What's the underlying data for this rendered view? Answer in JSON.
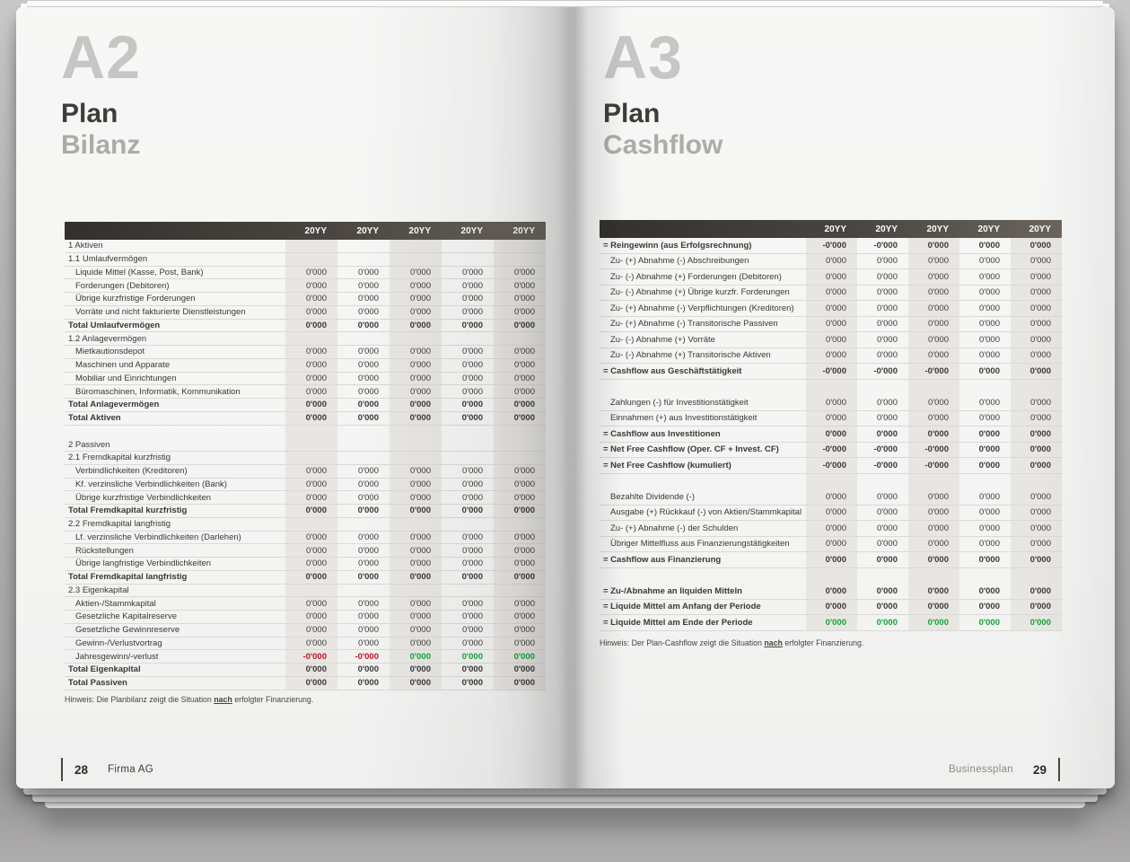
{
  "colors": {
    "negative": "#c40e22",
    "positive": "#15a338",
    "column_band": "#e8e6e3",
    "header_bar_dark": "#33302d",
    "header_bar_light": "#6b655e"
  },
  "left_page": {
    "chapter": "A2",
    "title": "Plan",
    "subtitle": "Bilanz",
    "table": {
      "year_headers": [
        "20YY",
        "20YY",
        "20YY",
        "20YY",
        "20YY"
      ],
      "rows": [
        {
          "label": "1 Aktiven",
          "type": "section"
        },
        {
          "label": "1.1 Umlaufvermögen",
          "type": "section"
        },
        {
          "label": "Liquide Mittel (Kasse, Post, Bank)",
          "type": "item",
          "values": [
            "0'000",
            "0'000",
            "0'000",
            "0'000",
            "0'000"
          ]
        },
        {
          "label": "Forderungen (Debitoren)",
          "type": "item",
          "values": [
            "0'000",
            "0'000",
            "0'000",
            "0'000",
            "0'000"
          ]
        },
        {
          "label": "Übrige kurzfristige Forderungen",
          "type": "item",
          "values": [
            "0'000",
            "0'000",
            "0'000",
            "0'000",
            "0'000"
          ]
        },
        {
          "label": "Vorräte und nicht fakturierte Dienstleistungen",
          "type": "item",
          "values": [
            "0'000",
            "0'000",
            "0'000",
            "0'000",
            "0'000"
          ]
        },
        {
          "label": "Total Umlaufvermögen",
          "type": "total",
          "values": [
            "0'000",
            "0'000",
            "0'000",
            "0'000",
            "0'000"
          ]
        },
        {
          "label": "1.2 Anlagevermögen",
          "type": "section"
        },
        {
          "label": "Mietkautionsdepot",
          "type": "item",
          "values": [
            "0'000",
            "0'000",
            "0'000",
            "0'000",
            "0'000"
          ]
        },
        {
          "label": "Maschinen und Apparate",
          "type": "item",
          "values": [
            "0'000",
            "0'000",
            "0'000",
            "0'000",
            "0'000"
          ]
        },
        {
          "label": "Mobiliar und Einrichtungen",
          "type": "item",
          "values": [
            "0'000",
            "0'000",
            "0'000",
            "0'000",
            "0'000"
          ]
        },
        {
          "label": "Büromaschinen, Informatik, Kommunikation",
          "type": "item",
          "values": [
            "0'000",
            "0'000",
            "0'000",
            "0'000",
            "0'000"
          ]
        },
        {
          "label": "Total Anlagevermögen",
          "type": "total",
          "values": [
            "0'000",
            "0'000",
            "0'000",
            "0'000",
            "0'000"
          ]
        },
        {
          "label": "Total Aktiven",
          "type": "total",
          "values": [
            "0'000",
            "0'000",
            "0'000",
            "0'000",
            "0'000"
          ]
        },
        {
          "type": "blank"
        },
        {
          "label": "2 Passiven",
          "type": "section"
        },
        {
          "label": "2.1 Fremdkapital kurzfristig",
          "type": "section"
        },
        {
          "label": "Verbindlichkeiten (Kreditoren)",
          "type": "item",
          "values": [
            "0'000",
            "0'000",
            "0'000",
            "0'000",
            "0'000"
          ]
        },
        {
          "label": "Kf. verzinsliche Verbindlichkeiten (Bank)",
          "type": "item",
          "values": [
            "0'000",
            "0'000",
            "0'000",
            "0'000",
            "0'000"
          ]
        },
        {
          "label": "Übrige kurzfristige Verbindlichkeiten",
          "type": "item",
          "values": [
            "0'000",
            "0'000",
            "0'000",
            "0'000",
            "0'000"
          ]
        },
        {
          "label": "Total Fremdkapital kurzfristig",
          "type": "total",
          "values": [
            "0'000",
            "0'000",
            "0'000",
            "0'000",
            "0'000"
          ]
        },
        {
          "label": "2.2 Fremdkapital langfristig",
          "type": "section"
        },
        {
          "label": "Lf. verzinsliche Verbindlichkeiten (Darlehen)",
          "type": "item",
          "values": [
            "0'000",
            "0'000",
            "0'000",
            "0'000",
            "0'000"
          ]
        },
        {
          "label": "Rückstellungen",
          "type": "item",
          "values": [
            "0'000",
            "0'000",
            "0'000",
            "0'000",
            "0'000"
          ]
        },
        {
          "label": "Übrige langfristige Verbindlichkeiten",
          "type": "item",
          "values": [
            "0'000",
            "0'000",
            "0'000",
            "0'000",
            "0'000"
          ]
        },
        {
          "label": "Total Fremdkapital langfristig",
          "type": "total",
          "values": [
            "0'000",
            "0'000",
            "0'000",
            "0'000",
            "0'000"
          ]
        },
        {
          "label": "2.3 Eigenkapital",
          "type": "section"
        },
        {
          "label": "Aktien-/Stammkapital",
          "type": "item",
          "values": [
            "0'000",
            "0'000",
            "0'000",
            "0'000",
            "0'000"
          ]
        },
        {
          "label": "Gesetzliche Kapitalreserve",
          "type": "item",
          "values": [
            "0'000",
            "0'000",
            "0'000",
            "0'000",
            "0'000"
          ]
        },
        {
          "label": "Gesetzliche Gewinnreserve",
          "type": "item",
          "values": [
            "0'000",
            "0'000",
            "0'000",
            "0'000",
            "0'000"
          ]
        },
        {
          "label": "Gewinn-/Verlustvortrag",
          "type": "item",
          "values": [
            "0'000",
            "0'000",
            "0'000",
            "0'000",
            "0'000"
          ]
        },
        {
          "label": "Jahresgewinn/-verlust",
          "type": "item",
          "values": [
            "-0'000",
            "-0'000",
            "0'000",
            "0'000",
            "0'000"
          ],
          "tones": [
            "neg",
            "neg",
            "pos",
            "pos",
            "pos"
          ]
        },
        {
          "label": "Total Eigenkapital",
          "type": "total",
          "values": [
            "0'000",
            "0'000",
            "0'000",
            "0'000",
            "0'000"
          ]
        },
        {
          "label": "Total Passiven",
          "type": "total",
          "values": [
            "0'000",
            "0'000",
            "0'000",
            "0'000",
            "0'000"
          ]
        }
      ]
    },
    "note": {
      "prefix": "Hinweis: Die Planbilanz zeigt die Situation ",
      "emphasis": "nach",
      "suffix": " erfolgter Finanzierung."
    },
    "footer": {
      "page_number": "28",
      "label": "Firma AG"
    }
  },
  "right_page": {
    "chapter": "A3",
    "title": "Plan",
    "subtitle": "Cashflow",
    "table": {
      "year_headers": [
        "20YY",
        "20YY",
        "20YY",
        "20YY",
        "20YY"
      ],
      "rows": [
        {
          "label": "= Reingewinn (aus Erfolgsrechnung)",
          "type": "total",
          "values": [
            "-0'000",
            "-0'000",
            "0'000",
            "0'000",
            "0'000"
          ]
        },
        {
          "label": "Zu- (+) Abnahme (-) Abschreibungen",
          "type": "item",
          "values": [
            "0'000",
            "0'000",
            "0'000",
            "0'000",
            "0'000"
          ]
        },
        {
          "label": "Zu- (-) Abnahme (+) Forderungen (Debitoren)",
          "type": "item",
          "values": [
            "0'000",
            "0'000",
            "0'000",
            "0'000",
            "0'000"
          ]
        },
        {
          "label": "Zu- (-) Abnahme (+) Übrige kurzfr. Forderungen",
          "type": "item",
          "values": [
            "0'000",
            "0'000",
            "0'000",
            "0'000",
            "0'000"
          ]
        },
        {
          "label": "Zu- (+) Abnahme (-) Verpflichtungen (Kreditoren)",
          "type": "item",
          "values": [
            "0'000",
            "0'000",
            "0'000",
            "0'000",
            "0'000"
          ]
        },
        {
          "label": "Zu- (+) Abnahme (-) Transitorische Passiven",
          "type": "item",
          "values": [
            "0'000",
            "0'000",
            "0'000",
            "0'000",
            "0'000"
          ]
        },
        {
          "label": "Zu- (-) Abnahme (+) Vorräte",
          "type": "item",
          "values": [
            "0'000",
            "0'000",
            "0'000",
            "0'000",
            "0'000"
          ]
        },
        {
          "label": "Zu- (-) Abnahme (+) Transitorische Aktiven",
          "type": "item",
          "values": [
            "0'000",
            "0'000",
            "0'000",
            "0'000",
            "0'000"
          ]
        },
        {
          "label": "= Cashflow aus Geschäftstätigkeit",
          "type": "total",
          "values": [
            "-0'000",
            "-0'000",
            "-0'000",
            "0'000",
            "0'000"
          ]
        },
        {
          "type": "blank"
        },
        {
          "label": "Zahlungen (-) für Investitionstätigkeit",
          "type": "item",
          "values": [
            "0'000",
            "0'000",
            "0'000",
            "0'000",
            "0'000"
          ]
        },
        {
          "label": "Einnahmen (+) aus Investitionstätigkeit",
          "type": "item",
          "values": [
            "0'000",
            "0'000",
            "0'000",
            "0'000",
            "0'000"
          ]
        },
        {
          "label": "= Cashflow aus Investitionen",
          "type": "total",
          "values": [
            "0'000",
            "0'000",
            "0'000",
            "0'000",
            "0'000"
          ]
        },
        {
          "label": "= Net Free Cashflow (Oper. CF + Invest. CF)",
          "type": "total",
          "values": [
            "-0'000",
            "-0'000",
            "-0'000",
            "0'000",
            "0'000"
          ]
        },
        {
          "label": "= Net Free Cashflow (kumuliert)",
          "type": "total",
          "values": [
            "-0'000",
            "-0'000",
            "-0'000",
            "0'000",
            "0'000"
          ]
        },
        {
          "type": "blank"
        },
        {
          "label": "Bezahlte Dividende (-)",
          "type": "item",
          "values": [
            "0'000",
            "0'000",
            "0'000",
            "0'000",
            "0'000"
          ]
        },
        {
          "label": "Ausgabe (+) Rückkauf (-) von Aktien/Stammkapital",
          "type": "item",
          "values": [
            "0'000",
            "0'000",
            "0'000",
            "0'000",
            "0'000"
          ]
        },
        {
          "label": "Zu- (+) Abnahme (-) der Schulden",
          "type": "item",
          "values": [
            "0'000",
            "0'000",
            "0'000",
            "0'000",
            "0'000"
          ]
        },
        {
          "label": "Übriger Mittelfluss aus Finanzierungstätigkeiten",
          "type": "item",
          "values": [
            "0'000",
            "0'000",
            "0'000",
            "0'000",
            "0'000"
          ]
        },
        {
          "label": "= Cashflow aus Finanzierung",
          "type": "total",
          "values": [
            "0'000",
            "0'000",
            "0'000",
            "0'000",
            "0'000"
          ]
        },
        {
          "type": "blank"
        },
        {
          "label": "= Zu-/Abnahme an liquiden Mitteln",
          "type": "total",
          "values": [
            "0'000",
            "0'000",
            "0'000",
            "0'000",
            "0'000"
          ]
        },
        {
          "label": "= Liquide Mittel am Anfang der Periode",
          "type": "total",
          "values": [
            "0'000",
            "0'000",
            "0'000",
            "0'000",
            "0'000"
          ]
        },
        {
          "label": "= Liquide Mittel am Ende der Periode",
          "type": "total",
          "values": [
            "0'000",
            "0'000",
            "0'000",
            "0'000",
            "0'000"
          ],
          "tones": [
            "pos",
            "pos",
            "pos",
            "pos",
            "pos"
          ]
        }
      ]
    },
    "note": {
      "prefix": "Hinweis: Der Plan-Cashflow zeigt die Situation ",
      "emphasis": "nach",
      "suffix": " erfolgter Finanzierung."
    },
    "footer": {
      "label": "Businessplan",
      "page_number": "29"
    }
  }
}
